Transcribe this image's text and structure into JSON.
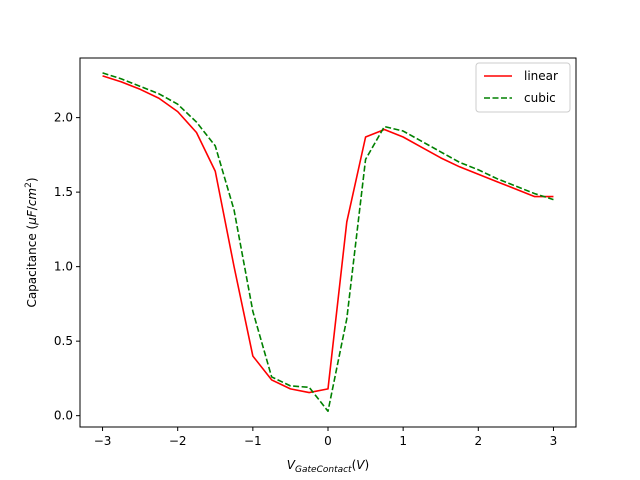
{
  "chart_data": {
    "type": "line",
    "title": "",
    "xlabel": "V_{GateContact}(V)",
    "ylabel": "Capacitance (μF/cm^2)",
    "xlim": [
      -3.3,
      3.3
    ],
    "ylim": [
      -0.076,
      2.4
    ],
    "xticks": [
      -3,
      -2,
      -1,
      0,
      1,
      2,
      3
    ],
    "yticks": [
      0.0,
      0.5,
      1.0,
      1.5,
      2.0
    ],
    "xtick_labels": [
      "−3",
      "−2",
      "−1",
      "0",
      "1",
      "2",
      "3"
    ],
    "ytick_labels": [
      "0.0",
      "0.5",
      "1.0",
      "1.5",
      "2.0"
    ],
    "grid": false,
    "legend_position": "top-right",
    "series": [
      {
        "name": "linear",
        "color": "#ff0000",
        "style": "solid",
        "x": [
          -3.0,
          -2.75,
          -2.5,
          -2.25,
          -2.0,
          -1.75,
          -1.5,
          -1.25,
          -1.0,
          -0.75,
          -0.5,
          -0.25,
          0.0,
          0.25,
          0.5,
          0.75,
          1.0,
          1.25,
          1.5,
          1.75,
          2.0,
          2.25,
          2.5,
          2.75,
          3.0
        ],
        "y": [
          2.28,
          2.24,
          2.19,
          2.13,
          2.04,
          1.9,
          1.64,
          1.0,
          0.4,
          0.24,
          0.18,
          0.155,
          0.18,
          1.3,
          1.87,
          1.92,
          1.87,
          1.8,
          1.73,
          1.67,
          1.62,
          1.57,
          1.52,
          1.47,
          1.47
        ]
      },
      {
        "name": "cubic",
        "color": "#008000",
        "style": "dashed",
        "x": [
          -3.0,
          -2.75,
          -2.5,
          -2.25,
          -2.0,
          -1.75,
          -1.5,
          -1.25,
          -1.0,
          -0.75,
          -0.5,
          -0.25,
          0.0,
          0.25,
          0.5,
          0.75,
          1.0,
          1.25,
          1.5,
          1.75,
          2.0,
          2.25,
          2.5,
          2.75,
          3.0
        ],
        "y": [
          2.3,
          2.26,
          2.21,
          2.16,
          2.09,
          1.97,
          1.81,
          1.38,
          0.7,
          0.26,
          0.2,
          0.19,
          0.03,
          0.65,
          1.72,
          1.94,
          1.91,
          1.84,
          1.77,
          1.7,
          1.65,
          1.59,
          1.54,
          1.49,
          1.45
        ]
      }
    ]
  }
}
